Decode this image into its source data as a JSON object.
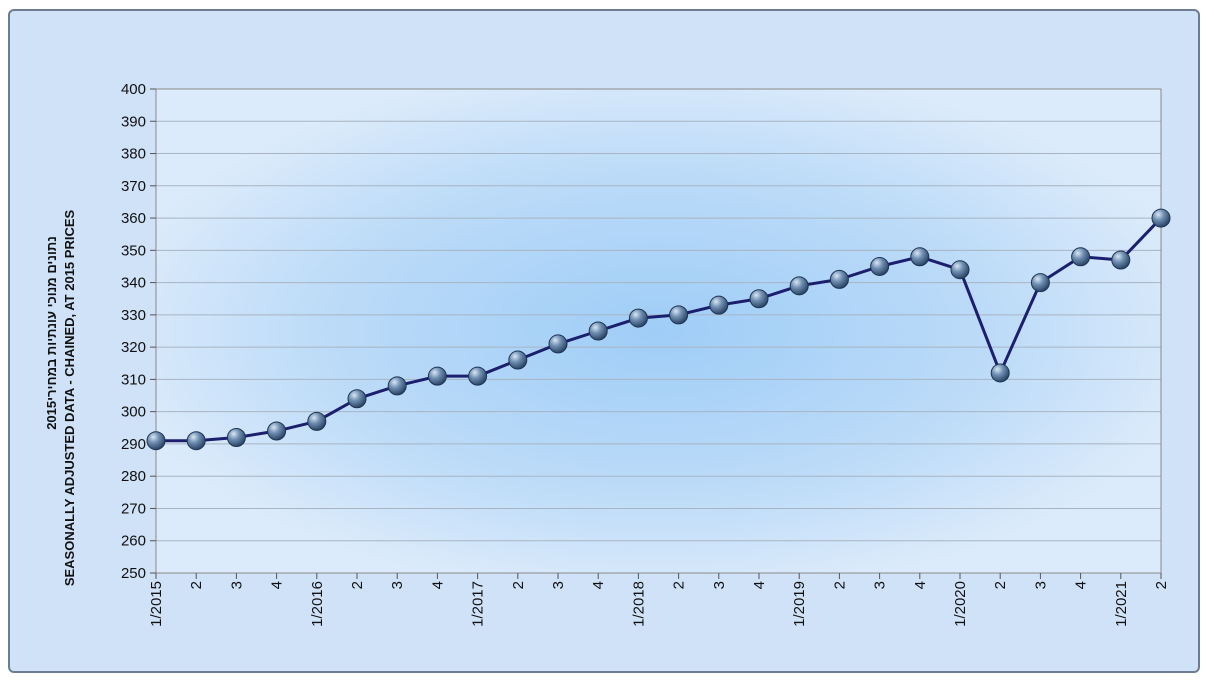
{
  "chart_data": {
    "type": "line",
    "title": "",
    "ylabel_line1": "נתונים מנוכי עונתיות במחירי2015",
    "ylabel_line2": "SEASONALLY ADJUSTED DATA - CHAINED, AT 2015 PRICES",
    "xlabel": "",
    "ylim": [
      250,
      400
    ],
    "yticks": [
      250,
      260,
      270,
      280,
      290,
      300,
      310,
      320,
      330,
      340,
      350,
      360,
      370,
      380,
      390,
      400
    ],
    "categories": [
      "1/2015",
      "2",
      "3",
      "4",
      "1/2016",
      "2",
      "3",
      "4",
      "1/2017",
      "2",
      "3",
      "4",
      "1/2018",
      "2",
      "3",
      "4",
      "1/2019",
      "2",
      "3",
      "4",
      "1/2020",
      "2",
      "3",
      "4",
      "1/2021",
      "2"
    ],
    "series": [
      {
        "name": "",
        "color": "#1c1f6e",
        "values": [
          291,
          291,
          292,
          294,
          297,
          304,
          308,
          311,
          311,
          316,
          321,
          325,
          329,
          330,
          333,
          335,
          339,
          341,
          345,
          348,
          344,
          312,
          340,
          348,
          347,
          360
        ]
      }
    ],
    "grid": true,
    "legend": "none"
  }
}
